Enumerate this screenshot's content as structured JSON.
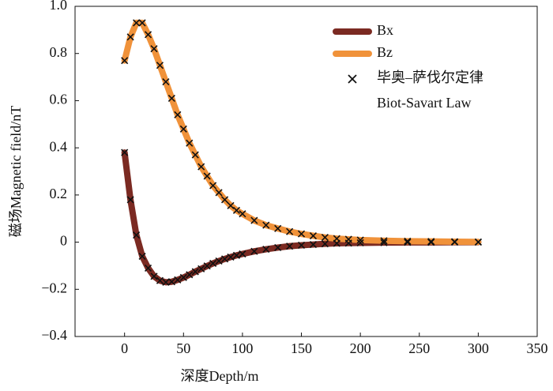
{
  "chart_data": {
    "type": "line",
    "xlabel": "深度Depth/m",
    "ylabel": "磁场Magnetic field/nT",
    "xlim": [
      -42,
      350
    ],
    "xticks": [
      0,
      50,
      100,
      150,
      200,
      250,
      300,
      350
    ],
    "ylim": [
      -0.4,
      1.0
    ],
    "yticks": [
      {
        "value": -0.4,
        "label": "−0.4"
      },
      {
        "value": -0.2,
        "label": "−0.2"
      },
      0,
      0.2,
      0.4,
      0.6,
      0.8,
      {
        "value": 1.0,
        "label": "1.0"
      }
    ],
    "legend": "upper right",
    "x": [
      0,
      5,
      10,
      15,
      20,
      25,
      30,
      35,
      40,
      45,
      50,
      55,
      60,
      65,
      70,
      75,
      80,
      85,
      90,
      95,
      100,
      110,
      120,
      130,
      140,
      150,
      160,
      170,
      180,
      190,
      200,
      220,
      240,
      260,
      280,
      300
    ],
    "series": [
      {
        "name": "Bx",
        "color": "#7b2a22",
        "values": [
          0.38,
          0.18,
          0.03,
          -0.06,
          -0.11,
          -0.145,
          -0.163,
          -0.17,
          -0.168,
          -0.16,
          -0.15,
          -0.138,
          -0.125,
          -0.113,
          -0.101,
          -0.09,
          -0.08,
          -0.071,
          -0.063,
          -0.056,
          -0.05,
          -0.039,
          -0.03,
          -0.023,
          -0.017,
          -0.013,
          -0.01,
          -0.007,
          -0.005,
          -0.004,
          -0.003,
          -0.002,
          -0.001,
          -0.001,
          0,
          0
        ]
      },
      {
        "name": "Bz",
        "color": "#f0923a",
        "values": [
          0.77,
          0.87,
          0.93,
          0.93,
          0.88,
          0.82,
          0.75,
          0.68,
          0.61,
          0.54,
          0.48,
          0.42,
          0.37,
          0.32,
          0.28,
          0.24,
          0.21,
          0.18,
          0.155,
          0.135,
          0.12,
          0.092,
          0.072,
          0.058,
          0.045,
          0.035,
          0.027,
          0.02,
          0.015,
          0.012,
          0.009,
          0.006,
          0.004,
          0.003,
          0.002,
          0.001
        ]
      }
    ],
    "markers": {
      "name": [
        "毕奥–萨伐尔定律",
        "Biot-Savart Law"
      ],
      "color": "#111111",
      "series": [
        {
          "values": [
            0.38,
            0.18,
            0.03,
            -0.06,
            -0.11,
            -0.145,
            -0.163,
            -0.17,
            -0.168,
            -0.16,
            -0.15,
            -0.138,
            -0.125,
            -0.113,
            -0.101,
            -0.09,
            -0.08,
            -0.071,
            -0.063,
            -0.056,
            -0.05,
            -0.039,
            -0.03,
            -0.023,
            -0.017,
            -0.013,
            -0.01,
            -0.007,
            -0.005,
            -0.004,
            -0.003,
            -0.002,
            -0.001,
            -0.001,
            0,
            0
          ]
        },
        {
          "values": [
            0.77,
            0.87,
            0.93,
            0.93,
            0.88,
            0.82,
            0.75,
            0.68,
            0.61,
            0.54,
            0.48,
            0.42,
            0.37,
            0.32,
            0.28,
            0.24,
            0.21,
            0.18,
            0.155,
            0.135,
            0.12,
            0.092,
            0.072,
            0.058,
            0.045,
            0.035,
            0.027,
            0.02,
            0.015,
            0.012,
            0.009,
            0.006,
            0.004,
            0.003,
            0.002,
            0.001
          ]
        }
      ]
    }
  }
}
